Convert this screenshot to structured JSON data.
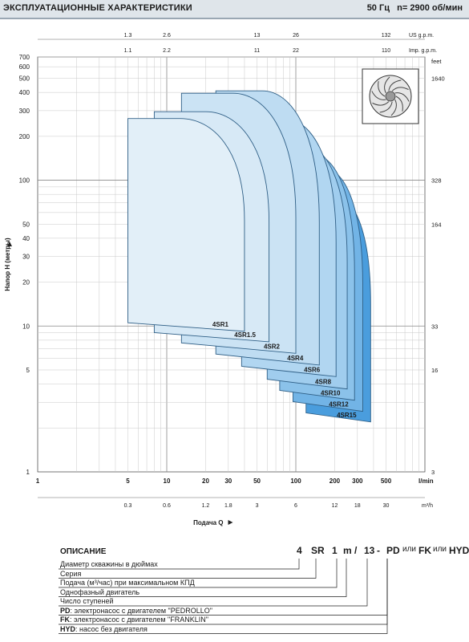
{
  "header": {
    "title": "ЭКСПЛУАТАЦИОННЫЕ ХАРАКТЕРИСТИКИ",
    "freq": "50 Гц",
    "speed": "n= 2900 об/мин"
  },
  "chart_data": {
    "type": "area",
    "xscale": "log",
    "yscale": "log",
    "xlim": [
      1,
      1000
    ],
    "ylim": [
      1,
      700
    ],
    "xlabel": "Подача Q",
    "ylabel": "Напор Н (метры)",
    "x_unit": "l/min",
    "right_unit": "feet",
    "grid": true,
    "x_ticks": [
      1,
      5,
      10,
      20,
      30,
      50,
      100,
      200,
      300,
      500
    ],
    "y_ticks": [
      1,
      5,
      10,
      20,
      30,
      40,
      50,
      100,
      200,
      300,
      400,
      500,
      600,
      700
    ],
    "m3h_unit": "m³/h",
    "m3h_ticks": [
      {
        "x": 5,
        "label": "0.3"
      },
      {
        "x": 10,
        "label": "0.6"
      },
      {
        "x": 20,
        "label": "1.2"
      },
      {
        "x": 30,
        "label": "1.8"
      },
      {
        "x": 50,
        "label": "3"
      },
      {
        "x": 100,
        "label": "6"
      },
      {
        "x": 200,
        "label": "12"
      },
      {
        "x": 300,
        "label": "18"
      },
      {
        "x": 500,
        "label": "30"
      }
    ],
    "usgpm_unit": "US g.p.m.",
    "usgpm_ticks": [
      {
        "x": 5,
        "label": "1.3"
      },
      {
        "x": 10,
        "label": "2.6"
      },
      {
        "x": 50,
        "label": "13"
      },
      {
        "x": 100,
        "label": "26"
      },
      {
        "x": 500,
        "label": "132"
      }
    ],
    "impgpm_unit": "Imp. g.p.m.",
    "impgpm_ticks": [
      {
        "x": 5,
        "label": "1.1"
      },
      {
        "x": 10,
        "label": "2.2"
      },
      {
        "x": 50,
        "label": "11"
      },
      {
        "x": 100,
        "label": "22"
      },
      {
        "x": 500,
        "label": "110"
      }
    ],
    "feet_ticks": [
      {
        "y": 500,
        "label": "1640"
      },
      {
        "y": 100,
        "label": "328"
      },
      {
        "y": 50,
        "label": "164"
      },
      {
        "y": 10,
        "label": "33"
      },
      {
        "y": 5,
        "label": "16"
      },
      {
        "y": 1,
        "label": "3"
      }
    ],
    "series": [
      {
        "name": "4SR15",
        "qmin": 120,
        "qmax": 380,
        "hmax": 78,
        "hmin": 2.2,
        "color": "#4a9ddd"
      },
      {
        "name": "4SR12",
        "qmin": 95,
        "qmax": 330,
        "hmax": 120,
        "hmin": 2.6,
        "color": "#72b4e6"
      },
      {
        "name": "4SR10",
        "qmin": 75,
        "qmax": 285,
        "hmax": 150,
        "hmin": 3.1,
        "color": "#8bc2ea"
      },
      {
        "name": "4SR8",
        "qmin": 60,
        "qmax": 250,
        "hmax": 175,
        "hmin": 3.7,
        "color": "#a0cdee"
      },
      {
        "name": "4SR6",
        "qmin": 38,
        "qmax": 205,
        "hmax": 265,
        "hmin": 4.5,
        "color": "#b1d6f1"
      },
      {
        "name": "4SR4",
        "qmin": 24,
        "qmax": 152,
        "hmax": 410,
        "hmin": 5.4,
        "color": "#bedcf2"
      },
      {
        "name": "4SR2",
        "qmin": 13,
        "qmax": 100,
        "hmax": 395,
        "hmin": 6.5,
        "color": "#cbe3f4"
      },
      {
        "name": "4SR1.5",
        "qmin": 8,
        "qmax": 62,
        "hmax": 295,
        "hmin": 7.8,
        "color": "#d7e9f6"
      },
      {
        "name": "4SR1",
        "qmin": 5,
        "qmax": 40,
        "hmax": 265,
        "hmin": 9.2,
        "color": "#e2eff8"
      }
    ]
  },
  "description": {
    "title": "ОПИСАНИЕ",
    "code_parts": [
      "4",
      "SR",
      "1",
      "m",
      "/",
      "13",
      "-",
      "PD",
      "или",
      "FK",
      "или",
      "HYD"
    ],
    "rows": [
      {
        "bold": "",
        "text": "Диаметр скважины в дюймах"
      },
      {
        "bold": "",
        "text": "Серия"
      },
      {
        "bold": "",
        "text": "Подача (м³/час) при максимальном КПД"
      },
      {
        "bold": "",
        "text": "Однофазный двигатель"
      },
      {
        "bold": "",
        "text": "Число ступеней"
      },
      {
        "bold": "PD",
        "text": ": электронасос с двигателем \"PEDROLLO\""
      },
      {
        "bold": "FK",
        "text": ": электронасос с двигателем \"FRANKLIN\""
      },
      {
        "bold": "HYD",
        "text": ": насос без двигателя"
      }
    ]
  }
}
